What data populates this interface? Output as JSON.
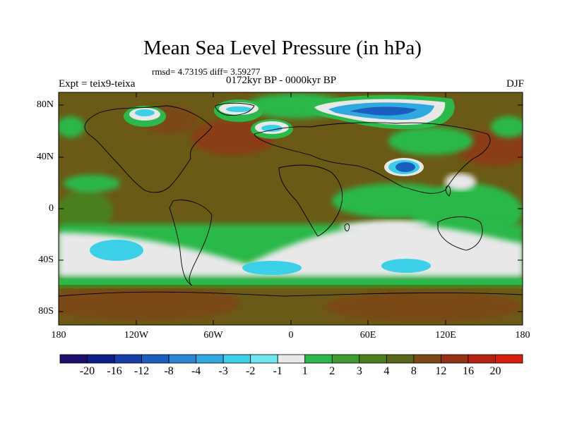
{
  "title": "Mean Sea Level Pressure (in hPa)",
  "stats": "rmsd= 4.73195  diff= 3.59277",
  "period": "0172kyr BP - 0000kyr BP",
  "experiment": "Expt = teix9-teixa",
  "season": "DJF",
  "lat_labels": [
    "80N",
    "40N",
    "0",
    "40S",
    "80S"
  ],
  "lon_labels": [
    "180",
    "120W",
    "60W",
    "0",
    "60E",
    "120E",
    "180"
  ],
  "colorbar": {
    "labels": [
      "-20",
      "-16",
      "-12",
      "-8",
      "-4",
      "-3",
      "-2",
      "-1",
      "1",
      "2",
      "3",
      "4",
      "8",
      "12",
      "16",
      "20"
    ],
    "colors": [
      "#1c0f6e",
      "#0f1f8a",
      "#1640a8",
      "#1a5ec0",
      "#2a86d4",
      "#30a8e0",
      "#3ccfe8",
      "#6ee6ee",
      "#e8e8e8",
      "#2cb84a",
      "#3d9a2e",
      "#4c7e1e",
      "#5a6518",
      "#7a4a14",
      "#963012",
      "#b42410",
      "#d81e0e"
    ]
  },
  "colors": {
    "ocean_base": "#6a5a16",
    "land_base": "#5c5c1c",
    "subtropical_high": "#8a3d12",
    "southern_ocean_low": "#e8e8e8",
    "cyan_low": "#3ccfe8",
    "blue_low": "#1a5ec0",
    "green_band": "#2cb84a"
  }
}
